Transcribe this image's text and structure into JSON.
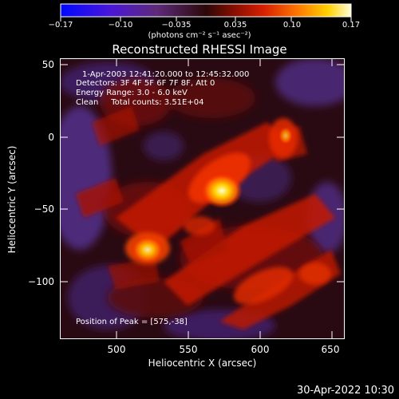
{
  "colorbar": {
    "ticks": [
      "−0.17",
      "−0.10",
      "−0.035",
      "0.035",
      "0.10",
      "0.17"
    ],
    "units": "(photons cm⁻² s⁻¹ asec⁻²)"
  },
  "title": "Reconstructed RHESSI Image",
  "annotations": {
    "time": "1-Apr-2003 12:41:20.000 to 12:45:32.000",
    "detectors": "Detectors: 3F 4F 5F 6F 7F 8F, Att 0",
    "energy": "Energy Range: 3.0 - 6.0 keV",
    "clean": "Clean     Total counts: 3.51E+04",
    "peak": "Position of Peak = [575,-38]"
  },
  "axes": {
    "xlabel": "Heliocentric X (arcsec)",
    "ylabel": "Heliocentric Y (arcsec)",
    "xticks": [
      "500",
      "550",
      "600",
      "650"
    ],
    "yticks": [
      "50",
      "0",
      "−50",
      "−100"
    ]
  },
  "timestamp": "30-Apr-2022 10:30"
}
